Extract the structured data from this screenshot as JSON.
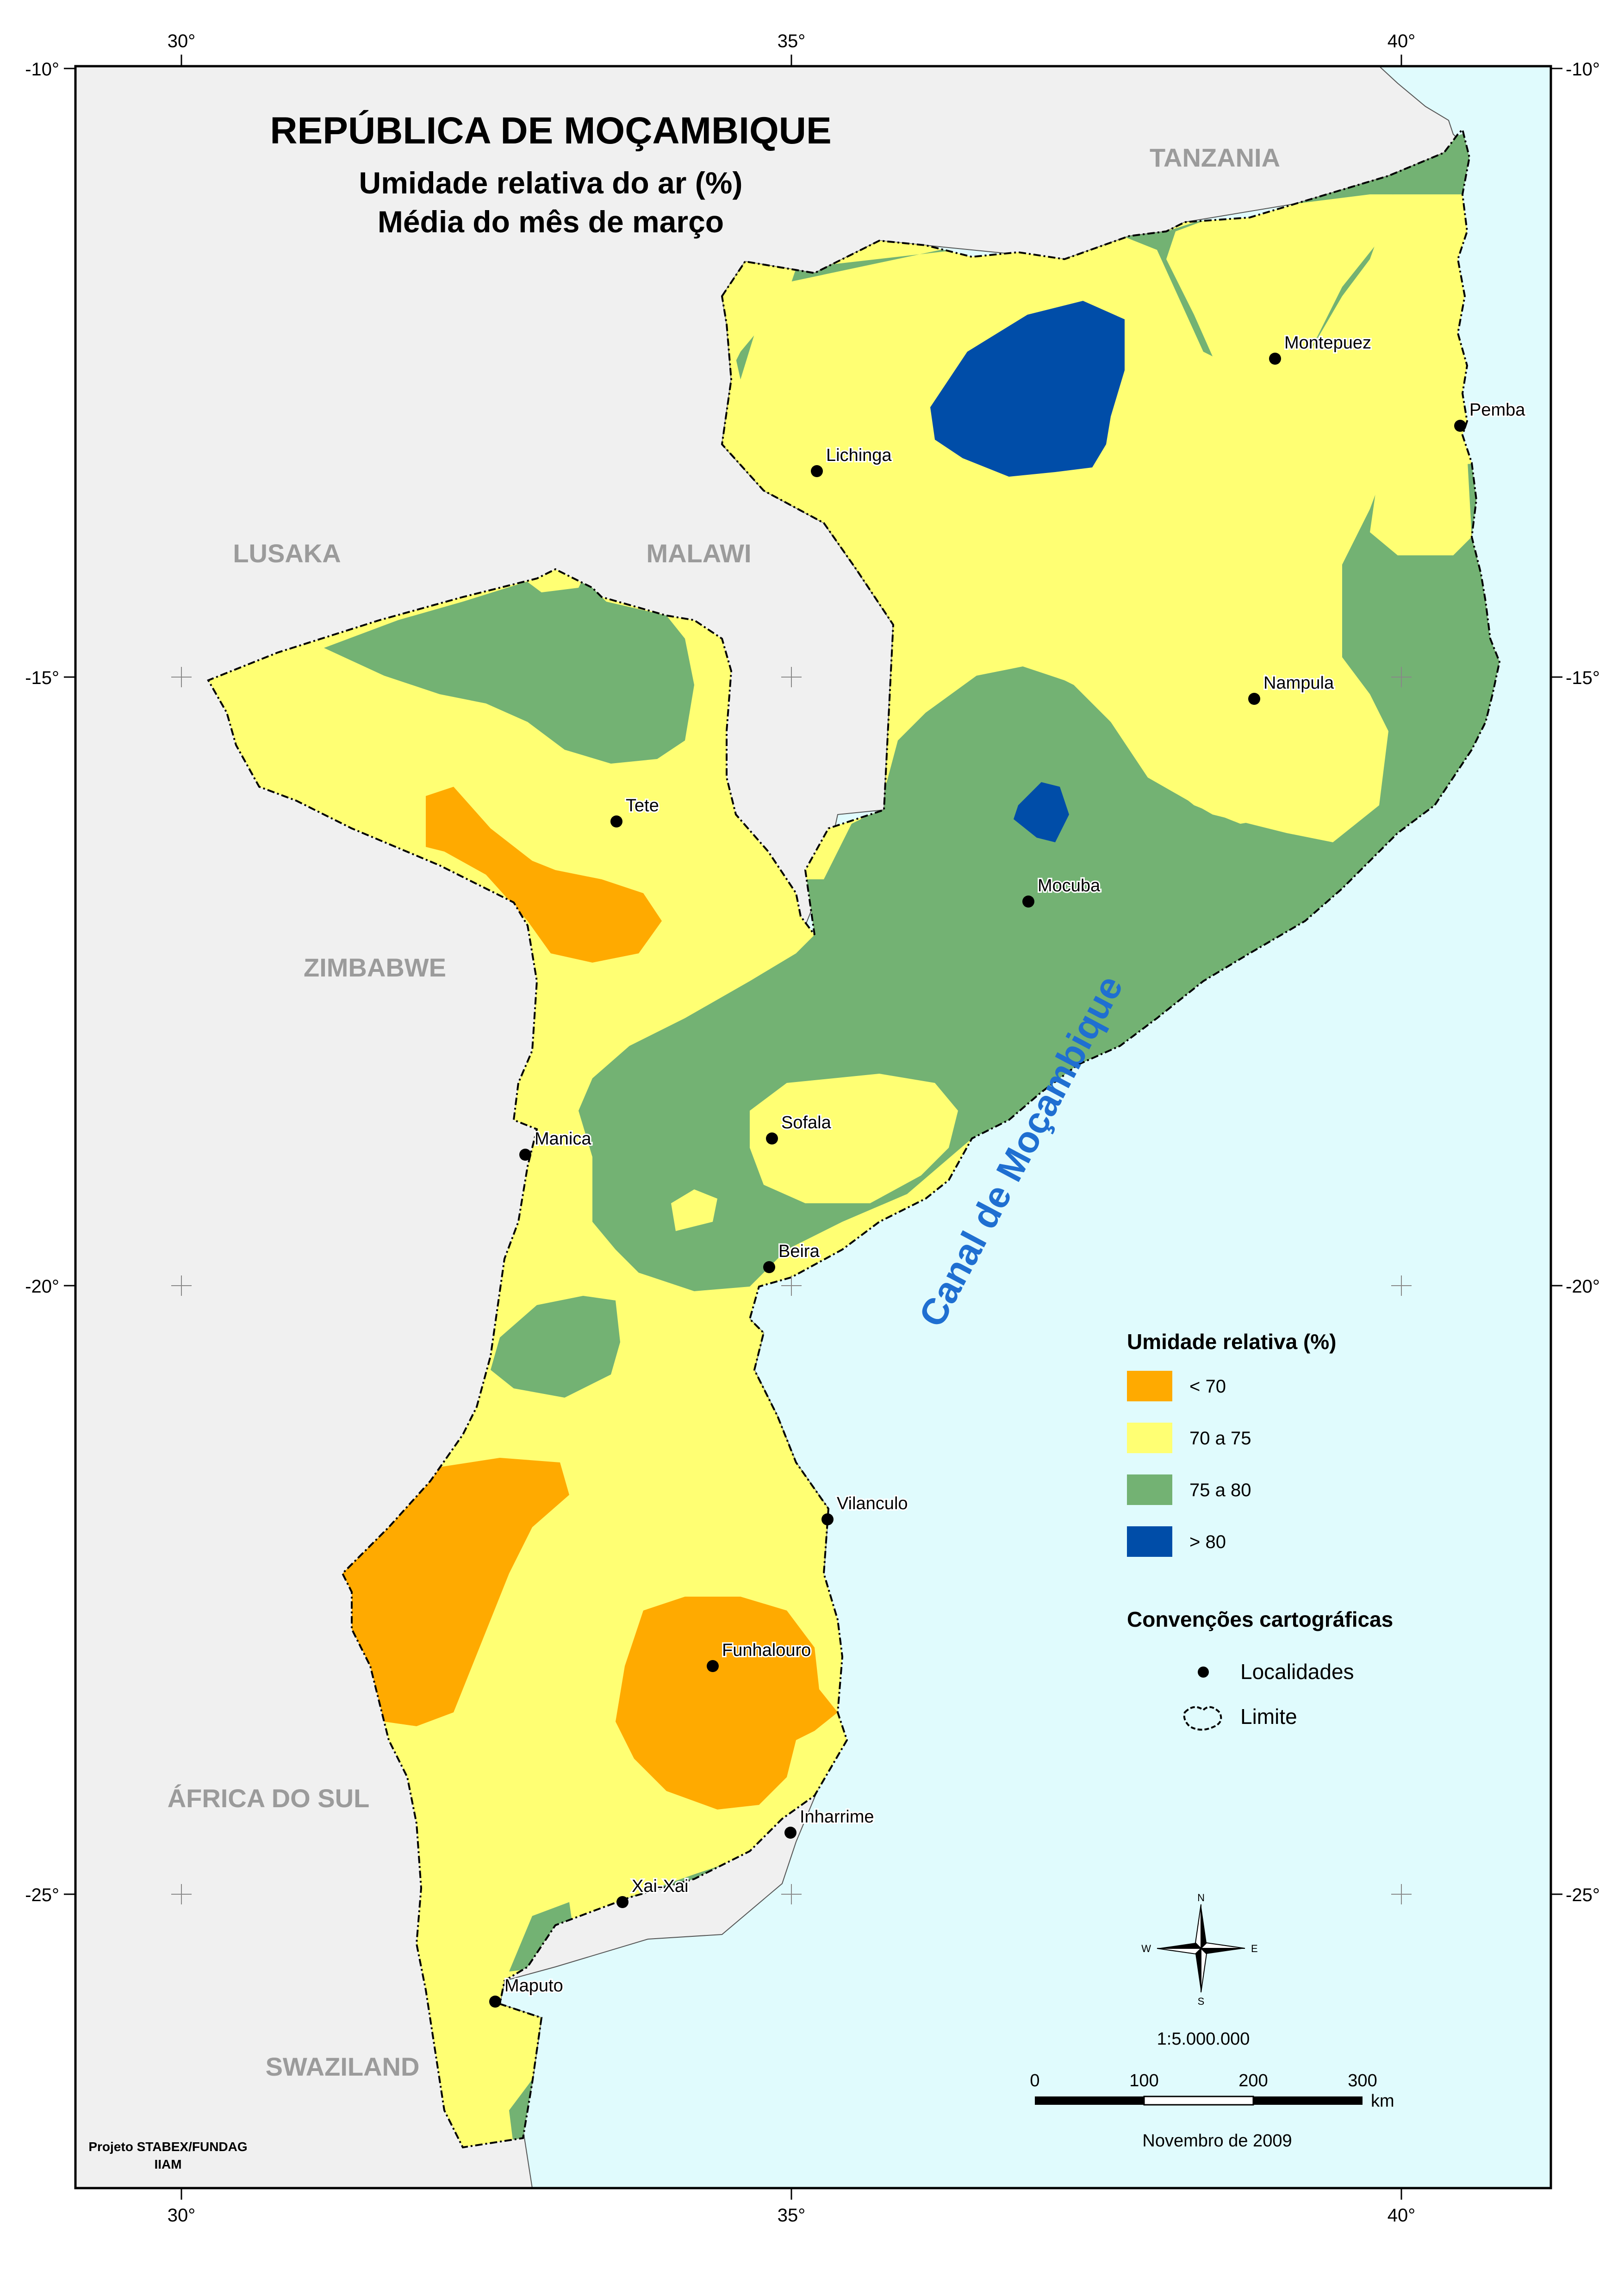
{
  "title": {
    "line1": "REPÚBLICA DE MOÇAMBIQUE",
    "line2": "Umidade relativa do ar (%)",
    "line3": "Média do mês de março"
  },
  "grid": {
    "lon_labels": [
      "30°",
      "35°",
      "40°"
    ],
    "lat_labels": [
      "-10°",
      "-15°",
      "-20°",
      "-25°"
    ]
  },
  "countries": {
    "tanzania": "TANZANIA",
    "lusaka": "LUSAKA",
    "malawi": "MALAWI",
    "zimbabwe": "ZIMBABWE",
    "south_africa": "ÁFRICA DO SUL",
    "swaziland": "SWAZILAND"
  },
  "sea_label": "Canal de Moçambique",
  "cities": [
    {
      "name": "Montepuez"
    },
    {
      "name": "Pemba"
    },
    {
      "name": "Lichinga"
    },
    {
      "name": "Nampula"
    },
    {
      "name": "Tete"
    },
    {
      "name": "Mocuba"
    },
    {
      "name": "Sofala"
    },
    {
      "name": "Manica"
    },
    {
      "name": "Beira"
    },
    {
      "name": "Vilanculo"
    },
    {
      "name": "Funhalouro"
    },
    {
      "name": "Inharrime"
    },
    {
      "name": "Xai-Xai"
    },
    {
      "name": "Maputo"
    }
  ],
  "legend": {
    "title": "Umidade relativa (%)",
    "classes": [
      {
        "label": "< 70",
        "color": "#ffaa00"
      },
      {
        "label": "70 a 75",
        "color": "#ffff73"
      },
      {
        "label": "75 a 80",
        "color": "#73b273"
      },
      {
        "label": "> 80",
        "color": "#004da8"
      }
    ],
    "conventions_title": "Convenções cartográficas",
    "localities_label": "Localidades",
    "limit_label": "Limite"
  },
  "compass": {
    "n": "N",
    "s": "S",
    "e": "E",
    "w": "W"
  },
  "scale": {
    "ratio": "1:5.000.000",
    "ticks": [
      "0",
      "100",
      "200",
      "300"
    ],
    "unit": "km"
  },
  "date": "Novembro de 2009",
  "credit": {
    "line1": "Projeto STABEX/FUNDAG",
    "line2": "IIAM"
  },
  "colors": {
    "sea": "#e0fbfd",
    "neighbor_land": "#f0f0f0",
    "lt70": "#ffaa00",
    "r70_75": "#ffff73",
    "r75_80": "#73b273",
    "gt80": "#004da8"
  }
}
